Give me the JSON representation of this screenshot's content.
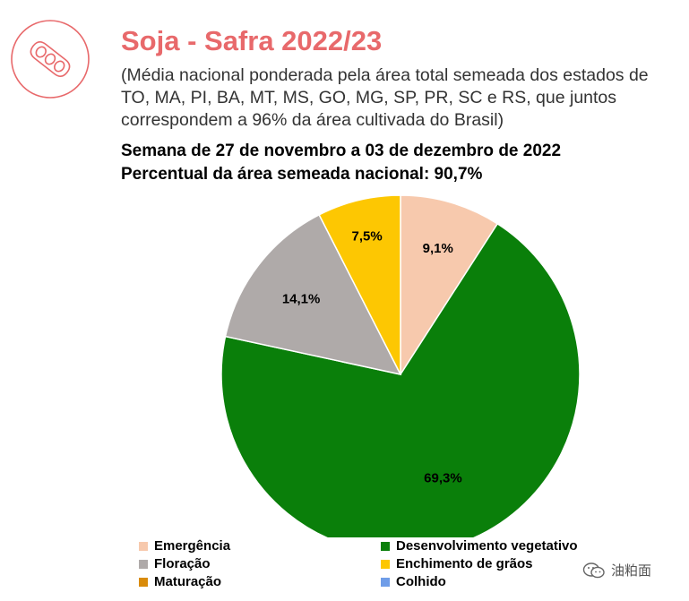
{
  "header": {
    "title": "Soja - Safra 2022/23",
    "subtitle": "(Média nacional ponderada pela área total semeada dos estados de TO, MA, PI, BA, MT, MS, GO, MG, SP, PR, SC e RS, que juntos correspondem a 96% da área cultivada do Brasil)",
    "week": "Semana de 27 de novembro a 03 de dezembro de 2022",
    "percent_sown": "Percentual da área semeada nacional: 90,7%",
    "logo_icon": "soybean-pod-icon",
    "accent_color": "#e8696b"
  },
  "chart_data": {
    "type": "pie",
    "title": "",
    "slices": [
      {
        "name": "Emergência",
        "value": 9.1,
        "label": "9,1%",
        "color": "#f7c9ad"
      },
      {
        "name": "Desenvolvimento vegetativo",
        "value": 69.3,
        "label": "69,3%",
        "color": "#0a7f0a"
      },
      {
        "name": "Floração",
        "value": 14.1,
        "label": "14,1%",
        "color": "#afaaa9"
      },
      {
        "name": "Enchimento de grãos",
        "value": 7.5,
        "label": "7,5%",
        "color": "#fdc702"
      },
      {
        "name": "Maturação",
        "value": 0,
        "label": "",
        "color": "#d98b0a"
      },
      {
        "name": "Colhido",
        "value": 0,
        "label": "",
        "color": "#6f9de8"
      }
    ],
    "legend": [
      {
        "label": "Emergência",
        "color": "#f7c9ad"
      },
      {
        "label": "Desenvolvimento vegetativo",
        "color": "#0a7f0a"
      },
      {
        "label": "Floração",
        "color": "#afaaa9"
      },
      {
        "label": "Enchimento de grãos",
        "color": "#fdc702"
      },
      {
        "label": "Maturação",
        "color": "#d98b0a"
      },
      {
        "label": "Colhido",
        "color": "#6f9de8"
      }
    ],
    "legend_position": "bottom",
    "start_angle": "12 o'clock, clockwise"
  },
  "watermark": {
    "text": "油粕面",
    "icon": "wechat-icon"
  }
}
